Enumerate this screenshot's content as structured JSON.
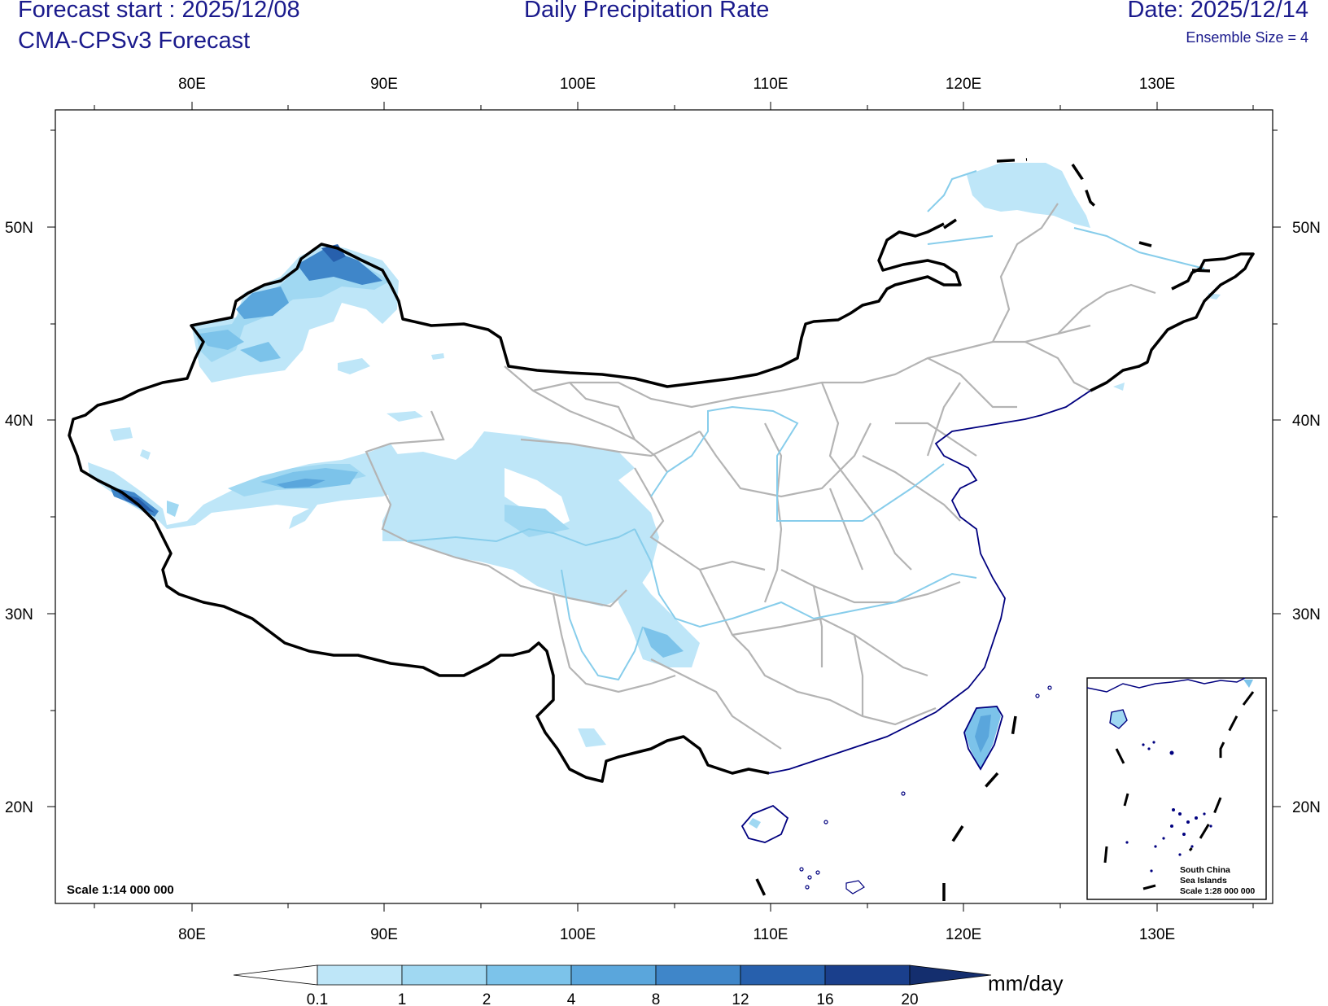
{
  "header": {
    "forecast_start": "Forecast start : 2025/12/08",
    "model": "CMA-CPSv3 Forecast",
    "title": "Daily Precipitation Rate",
    "date": "Date: 2025/12/14",
    "ensemble": "Ensemble Size = 4"
  },
  "map": {
    "lon_labels": [
      "80E",
      "90E",
      "100E",
      "110E",
      "120E",
      "130E"
    ],
    "lat_labels": [
      "50N",
      "40N",
      "30N",
      "20N"
    ],
    "scale_label": "Scale 1:14 000 000",
    "inset": {
      "line1": "South China",
      "line2": "Sea Islands",
      "line3": "Scale 1:28 000 000"
    },
    "colors": {
      "country_border": "#000000",
      "province_border": "#b4b4b4",
      "coastline": "#00007f",
      "rivers": "#87cdeb"
    }
  },
  "colorbar": {
    "unit": "mm/day",
    "ticks": [
      "0.1",
      "1",
      "2",
      "4",
      "8",
      "12",
      "16",
      "20"
    ],
    "colors": [
      "#ffffff",
      "#bee6f8",
      "#a0d8f2",
      "#7cc3ea",
      "#5aa6dc",
      "#3f86c9",
      "#2760ad",
      "#1a3f8c",
      "#142e6e"
    ]
  }
}
